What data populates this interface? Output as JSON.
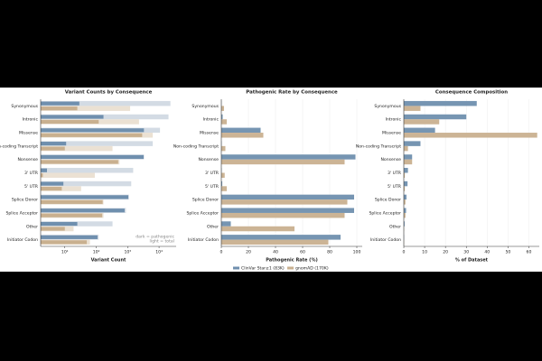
{
  "chart_data": [
    {
      "type": "bar",
      "orientation": "horizontal",
      "title": "Variant Counts by Consequence",
      "xlabel": "Variant Count",
      "xscale": "log",
      "grid": false,
      "categories": [
        "Synonymous",
        "Intronic",
        "Missense",
        "Non-coding Transcript",
        "Nonsense",
        "3' UTR",
        "5' UTR",
        "Splice Donor",
        "Splice Acceptor",
        "Other",
        "Initiator Codon"
      ],
      "series": [
        {
          "color": "#6f8fae",
          "light_color": "#d3dbe4",
          "values": [
            23000,
            20000,
            10700,
            6300,
            3300,
            1500,
            1300,
            1100,
            880,
            330,
            120
          ],
          "pathogenic_values": [
            29,
            170,
            3300,
            11,
            3250,
            2.7,
            9,
            1050,
            800,
            25,
            110
          ]
        },
        {
          "color": "#c9b08f",
          "light_color": "#ebe1d3",
          "values": [
            1200,
            2300,
            6300,
            330,
            550,
            90,
            33,
            170,
            170,
            19,
            63
          ],
          "pathogenic_values": [
            25,
            120,
            2900,
            10,
            500,
            2,
            8,
            160,
            155,
            10,
            50
          ]
        }
      ],
      "xlim": [
        1.7,
        35000
      ],
      "xticks": [
        {
          "value": 10,
          "label": "10¹"
        },
        {
          "value": 100,
          "label": "10²"
        },
        {
          "value": 1000,
          "label": "10³"
        },
        {
          "value": 10000,
          "label": "10⁴"
        }
      ],
      "annotation": [
        "dark = pathogenic",
        "light = total"
      ]
    },
    {
      "type": "bar",
      "orientation": "horizontal",
      "title": "Pathogenic Rate by Consequence",
      "xlabel": "Pathogenic Rate (%)",
      "grid": true,
      "categories": [
        "Synonymous",
        "Intronic",
        "Missense",
        "Non-coding Transcript",
        "Nonsense",
        "3' UTR",
        "5' UTR",
        "Splice Donor",
        "Splice Acceptor",
        "Other",
        "Initiator Codon"
      ],
      "series": [
        {
          "name": "ClinVar Star≥1 (83K)",
          "color": "#6f8fae",
          "values": [
            0.1,
            1,
            29,
            0.2,
            99,
            0.2,
            0.7,
            98,
            98,
            7,
            88
          ]
        },
        {
          "name": "gnomAD (170K)",
          "color": "#c9b08f",
          "values": [
            2,
            4,
            31,
            3,
            91,
            2.5,
            4,
            93,
            91,
            54,
            79
          ]
        }
      ],
      "xlim": [
        0,
        104
      ],
      "xticks": [
        0,
        20,
        40,
        60,
        80,
        100
      ],
      "legend": "bottom"
    },
    {
      "type": "bar",
      "orientation": "horizontal",
      "title": "Consequence Composition",
      "xlabel": "% of Dataset",
      "grid": true,
      "categories": [
        "Synonymous",
        "Intronic",
        "Missense",
        "Non-coding Transcript",
        "Nonsense",
        "3' UTR",
        "5' UTR",
        "Splice Donor",
        "Splice Acceptor",
        "Other",
        "Initiator Codon"
      ],
      "series": [
        {
          "color": "#6f8fae",
          "values": [
            35,
            30,
            15,
            8,
            4,
            2,
            1.8,
            1.3,
            1.1,
            0.4,
            0.1
          ]
        },
        {
          "color": "#c9b08f",
          "values": [
            8,
            17,
            64,
            2,
            4,
            0.5,
            0.5,
            0.8,
            0.8,
            0.1,
            0.1
          ]
        }
      ],
      "xlim": [
        0,
        65
      ],
      "xticks": [
        0,
        10,
        20,
        30,
        40,
        50,
        60
      ]
    }
  ]
}
